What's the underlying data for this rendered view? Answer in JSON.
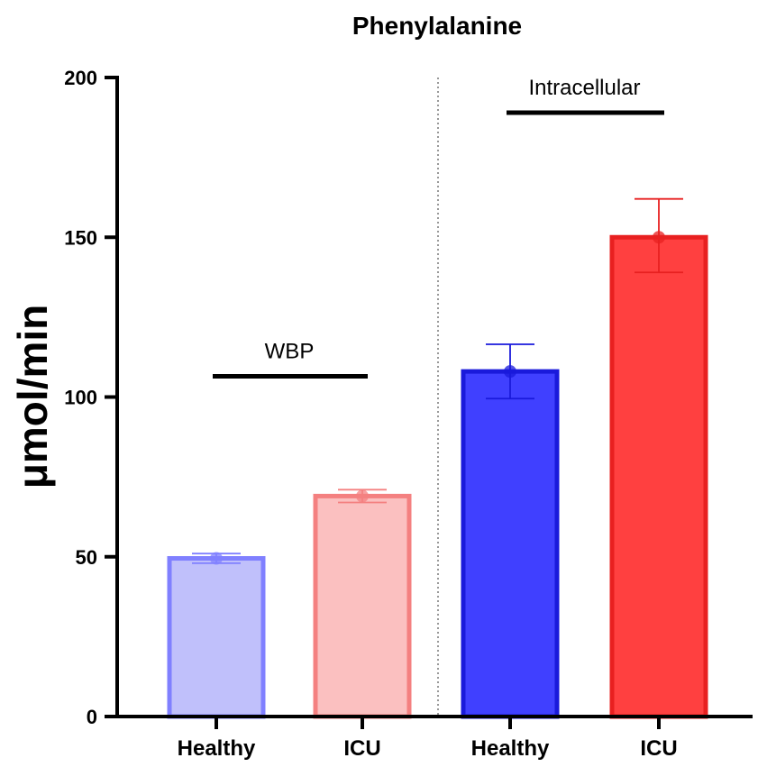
{
  "chart_data": {
    "type": "bar",
    "title": "Phenylalanine",
    "ylabel": "μmol/min",
    "xlabel": "",
    "ylim": [
      0,
      200
    ],
    "yticks": [
      0,
      50,
      100,
      150,
      200
    ],
    "ytick_labels": [
      "0",
      "50",
      "100",
      "150",
      "200"
    ],
    "categories": [
      "Healthy",
      "ICU",
      "Healthy",
      "ICU"
    ],
    "values": [
      49.5,
      69,
      108,
      150
    ],
    "errors_upper": [
      51,
      71,
      116.5,
      162
    ],
    "errors_lower": [
      48,
      67,
      99.5,
      139
    ],
    "fill_colors": [
      "#c0c0fb",
      "#fbc0c0",
      "#4040ff",
      "#ff4040"
    ],
    "edge_colors": [
      "#8080ff",
      "#f48080",
      "#1a1adb",
      "#e82020"
    ],
    "groups": [
      {
        "label": "WBP",
        "categories": [
          0,
          1
        ],
        "line_y": 106.5
      },
      {
        "label": "Intracellular",
        "categories": [
          2,
          3
        ],
        "line_y": 189
      }
    ],
    "divider": "dotted vertical line between WBP and Intracellular groups"
  }
}
